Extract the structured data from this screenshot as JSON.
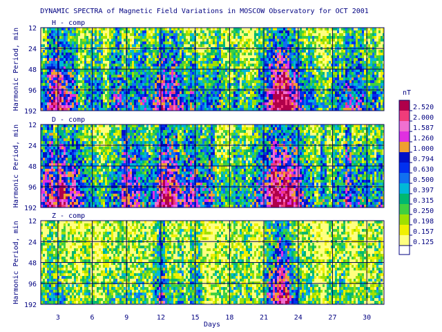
{
  "chart_data": {
    "type": "heatmap",
    "title": "DYNAMIC SPECTRA of Magnetic Field Variations in MOSCOW Observatory for OCT 2001",
    "xlabel": "Days",
    "ylabel": "Harmonic Period, min",
    "x_range": [
      1.5,
      31.5
    ],
    "x_ticks": [
      "3",
      "6",
      "9",
      "12",
      "15",
      "18",
      "21",
      "24",
      "27",
      "30"
    ],
    "y_scale": "log2",
    "y_range": [
      12,
      192
    ],
    "y_ticks": [
      "12",
      "24",
      "48",
      "96",
      "192"
    ],
    "grid": true,
    "colorbar": {
      "unit": "nT",
      "levels": [
        "2.520",
        "2.000",
        "1.587",
        "1.260",
        "1.000",
        "0.794",
        "0.630",
        "0.500",
        "0.397",
        "0.315",
        "0.250",
        "0.198",
        "0.157",
        "0.125"
      ],
      "colors": [
        "#b0004a",
        "#f03c7a",
        "#f070d0",
        "#e030e0",
        "#f0a030",
        "#0010c8",
        "#0030f0",
        "#1070f0",
        "#00b8d8",
        "#00b870",
        "#40d040",
        "#a0e000",
        "#f0f000",
        "#ffff80"
      ]
    },
    "panels": [
      {
        "label": "H - comp",
        "activity_by_day": [
          0.45,
          0.5,
          0.85,
          0.6,
          0.35,
          0.4,
          0.3,
          0.45,
          0.55,
          0.4,
          0.5,
          0.7,
          0.65,
          0.55,
          0.5,
          0.45,
          0.4,
          0.35,
          0.3,
          0.35,
          0.55,
          0.95,
          0.9,
          0.7,
          0.4,
          0.35,
          0.3,
          0.55,
          0.45,
          0.4,
          0.35
        ],
        "period_weight": [
          0.05,
          0.25,
          0.5,
          0.8,
          1.0
        ]
      },
      {
        "label": "D - comp",
        "activity_by_day": [
          0.5,
          0.6,
          0.85,
          0.75,
          0.5,
          0.45,
          0.35,
          0.55,
          0.65,
          0.45,
          0.55,
          0.8,
          0.7,
          0.6,
          0.55,
          0.45,
          0.4,
          0.35,
          0.3,
          0.35,
          0.55,
          0.95,
          0.9,
          0.7,
          0.4,
          0.35,
          0.3,
          0.6,
          0.5,
          0.4,
          0.35
        ],
        "period_weight": [
          0.1,
          0.35,
          0.6,
          0.85,
          1.0
        ]
      },
      {
        "label": "Z - comp",
        "activity_by_day": [
          0.25,
          0.3,
          0.45,
          0.35,
          0.2,
          0.25,
          0.2,
          0.3,
          0.35,
          0.25,
          0.3,
          0.55,
          0.4,
          0.3,
          0.3,
          0.25,
          0.2,
          0.2,
          0.15,
          0.2,
          0.35,
          0.95,
          0.85,
          0.5,
          0.25,
          0.2,
          0.2,
          0.3,
          0.25,
          0.2,
          0.2
        ],
        "period_weight": [
          0.0,
          0.15,
          0.3,
          0.55,
          0.8
        ]
      }
    ]
  }
}
